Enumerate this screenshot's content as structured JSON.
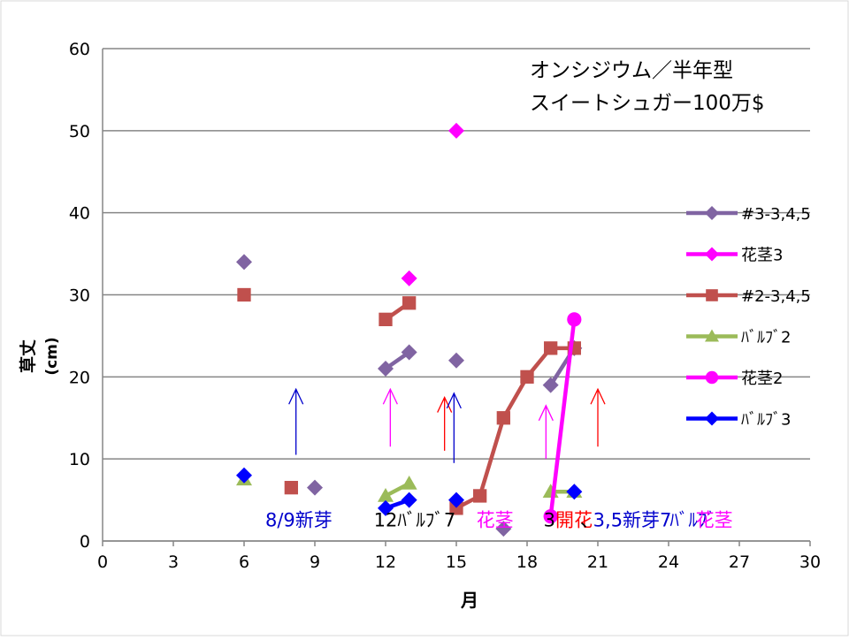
{
  "chart_data": {
    "type": "scatter",
    "title_lines": [
      "オンシジウム／半年型",
      "スイートシュガー100万$"
    ],
    "xlabel": "月",
    "ylabel": "草丈",
    "ylabel_unit": "(cm)",
    "xlim": [
      0,
      30
    ],
    "ylim": [
      0,
      60
    ],
    "x_ticks": [
      0,
      3,
      6,
      9,
      12,
      15,
      18,
      21,
      24,
      27,
      30
    ],
    "y_ticks": [
      0,
      10,
      20,
      30,
      40,
      50,
      60
    ],
    "grid": "horizontal",
    "legend_position": "right",
    "series": [
      {
        "name": "#3-3,4,5",
        "color": "#8064a2",
        "marker": "diamond",
        "points": [
          [
            6,
            34
          ],
          [
            9,
            6.5
          ],
          [
            12,
            21
          ],
          [
            13,
            23
          ],
          [
            15,
            22
          ],
          [
            17,
            1.5
          ],
          [
            19,
            19
          ],
          [
            20,
            23.5
          ]
        ],
        "segments": [
          [
            2,
            3
          ],
          [
            6,
            7
          ]
        ]
      },
      {
        "name": "花茎3",
        "color": "#ff00ff",
        "marker": "diamond",
        "points": [
          [
            13,
            32
          ],
          [
            15,
            50
          ]
        ],
        "segments": []
      },
      {
        "name": "#2-3,4,5",
        "color": "#c0504d",
        "marker": "square",
        "points": [
          [
            6,
            30
          ],
          [
            8,
            6.5
          ],
          [
            12,
            27
          ],
          [
            13,
            29
          ],
          [
            15,
            4
          ],
          [
            16,
            5.5
          ],
          [
            17,
            15
          ],
          [
            18,
            20
          ],
          [
            19,
            23.5
          ],
          [
            20,
            23.5
          ]
        ],
        "segments": [
          [
            2,
            3
          ],
          [
            4,
            5,
            6,
            7,
            8,
            9
          ]
        ]
      },
      {
        "name": "ﾊﾞﾙﾌﾞ2",
        "color": "#9bbb59",
        "marker": "triangle",
        "points": [
          [
            6,
            7.5
          ],
          [
            12,
            5.5
          ],
          [
            13,
            7
          ],
          [
            19,
            6
          ],
          [
            20,
            6
          ]
        ],
        "segments": [
          [
            1,
            2
          ],
          [
            3,
            4
          ]
        ]
      },
      {
        "name": "花茎2",
        "color": "#ff00ff",
        "marker": "circle",
        "points": [
          [
            19,
            3
          ],
          [
            20,
            27
          ]
        ],
        "segments": [
          [
            0,
            1
          ]
        ]
      },
      {
        "name": "ﾊﾞﾙﾌﾞ3",
        "color": "#0000ff",
        "marker": "diamond",
        "points": [
          [
            6,
            8
          ],
          [
            12,
            4
          ],
          [
            13,
            5
          ],
          [
            15,
            5
          ],
          [
            20,
            6
          ]
        ],
        "segments": [
          [
            1,
            2
          ]
        ]
      }
    ],
    "arrows": [
      {
        "x": 8.2,
        "y_from": 10.5,
        "y_to": 18.5,
        "color": "#0000cc"
      },
      {
        "x": 12.2,
        "y_from": 11.5,
        "y_to": 18.5,
        "color": "#ff00ff"
      },
      {
        "x": 14.5,
        "y_from": 11,
        "y_to": 17.5,
        "color": "#ff0000"
      },
      {
        "x": 14.9,
        "y_from": 9.5,
        "y_to": 18,
        "color": "#0000cc"
      },
      {
        "x": 18.8,
        "y_from": 10,
        "y_to": 16.5,
        "color": "#ff00ff"
      },
      {
        "x": 21,
        "y_from": 11.5,
        "y_to": 18.5,
        "color": "#ff0000"
      }
    ],
    "annotations": [
      {
        "text": "8/9新芽",
        "color": "#0000cc",
        "x": 6.9,
        "y": 1.8
      },
      {
        "text": "12ﾊﾞﾙﾌﾞ7",
        "color": "#000000",
        "x": 11.5,
        "y": 1.8
      },
      {
        "text": "花茎",
        "color": "#ff00ff",
        "x": 15.85,
        "y": 1.8
      },
      {
        "text": "3",
        "color": "#000000",
        "x": 18.7,
        "y": 1.8
      },
      {
        "text": "開花",
        "color": "#ff0000",
        "x": 19.2,
        "y": 1.8
      },
      {
        "text": "、",
        "color": "#000000",
        "x": 20.25,
        "y": 1.8
      },
      {
        "text": "3,5新芽7",
        "color": "#0000cc",
        "x": 20.8,
        "y": 1.8
      },
      {
        "text": "ﾊﾞﾙﾌﾞ",
        "color": "#0000cc",
        "x": 24.05,
        "y": 1.8
      },
      {
        "text": "花茎",
        "color": "#ff00ff",
        "x": 25.15,
        "y": 1.8
      }
    ]
  }
}
